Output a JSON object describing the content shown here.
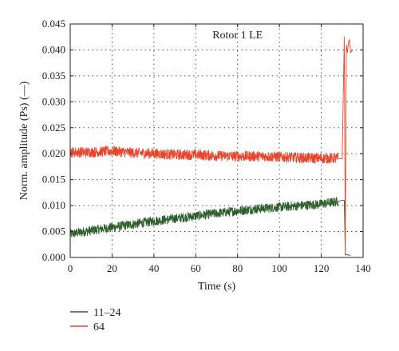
{
  "chart_data": {
    "type": "line",
    "title": "",
    "annotation": "Rotor 1 LE",
    "xlabel": "Time (s)",
    "ylabel": "Norm. amplitude (Ps) (—)",
    "xlim": [
      0,
      140
    ],
    "ylim": [
      0,
      0.045
    ],
    "xticks": [
      0,
      20,
      40,
      60,
      80,
      100,
      120,
      140
    ],
    "yticks": [
      0.0,
      0.005,
      0.01,
      0.015,
      0.02,
      0.025,
      0.03,
      0.035,
      0.04,
      0.045
    ],
    "xtick_labels": [
      "0",
      "20",
      "40",
      "60",
      "80",
      "100",
      "120",
      "140"
    ],
    "ytick_labels": [
      "0.000",
      "0.005",
      "0.010",
      "0.015",
      "0.020",
      "0.025",
      "0.030",
      "0.035",
      "0.040",
      "0.045"
    ],
    "grid": true,
    "legend_position": "below",
    "series": [
      {
        "name": "11–24",
        "color": "#2e5e2b",
        "x": [
          0,
          10,
          20,
          30,
          40,
          50,
          60,
          70,
          80,
          90,
          100,
          110,
          120,
          128,
          130,
          131,
          131.5,
          133,
          134
        ],
        "y": [
          0.0045,
          0.0052,
          0.0058,
          0.0064,
          0.007,
          0.0075,
          0.008,
          0.0085,
          0.009,
          0.0094,
          0.0097,
          0.01,
          0.0103,
          0.0108,
          0.011,
          0.011,
          0.0005,
          0.0005,
          0.0004
        ],
        "noise_amplitude": 0.0009
      },
      {
        "name": "64",
        "color": "#e8452c",
        "x": [
          0,
          10,
          20,
          30,
          40,
          50,
          60,
          70,
          80,
          90,
          100,
          110,
          120,
          128,
          130,
          131,
          131.5,
          132,
          132.5,
          133,
          133.5,
          134,
          135
        ],
        "y": [
          0.0203,
          0.0203,
          0.0205,
          0.0202,
          0.02,
          0.0198,
          0.0198,
          0.0196,
          0.0195,
          0.0195,
          0.0194,
          0.0192,
          0.0191,
          0.0191,
          0.019,
          0.0425,
          0.001,
          0.041,
          0.0395,
          0.0415,
          0.042,
          0.0395,
          0.04
        ],
        "noise_amplitude": 0.001
      }
    ]
  }
}
